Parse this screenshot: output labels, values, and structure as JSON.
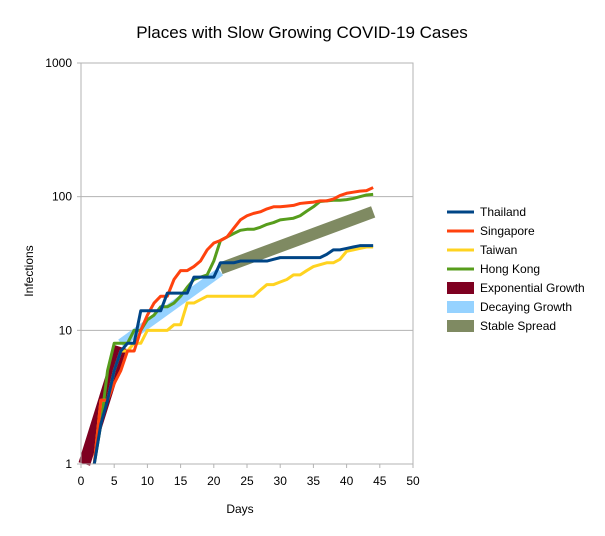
{
  "chart_data": {
    "type": "line",
    "title": "Places with Slow Growing COVID-19 Cases",
    "xlabel": "Days",
    "ylabel": "Infections",
    "xlim": [
      0,
      50
    ],
    "ylim": [
      1,
      1000
    ],
    "yscale": "log",
    "xticks": [
      0,
      5,
      10,
      15,
      20,
      25,
      30,
      35,
      40,
      45,
      50
    ],
    "yticks": [
      1,
      10,
      100,
      1000
    ],
    "ytick_labels": [
      "1",
      "10",
      "100",
      "1000"
    ],
    "grid": "y-major",
    "legend_position": "right",
    "series": [
      {
        "name": "Thailand",
        "kind": "line",
        "color": "#004586",
        "points": [
          [
            2,
            1
          ],
          [
            3,
            2
          ],
          [
            4,
            3
          ],
          [
            5,
            5
          ],
          [
            6,
            7
          ],
          [
            7,
            8
          ],
          [
            8,
            8
          ],
          [
            9,
            14
          ],
          [
            10,
            14
          ],
          [
            11,
            14
          ],
          [
            12,
            14
          ],
          [
            13,
            19
          ],
          [
            14,
            19
          ],
          [
            15,
            19
          ],
          [
            16,
            19
          ],
          [
            17,
            25
          ],
          [
            18,
            25
          ],
          [
            19,
            25
          ],
          [
            20,
            25
          ],
          [
            21,
            32
          ],
          [
            22,
            32
          ],
          [
            23,
            32
          ],
          [
            24,
            33
          ],
          [
            25,
            33
          ],
          [
            26,
            33
          ],
          [
            27,
            33
          ],
          [
            28,
            33
          ],
          [
            29,
            34
          ],
          [
            30,
            35
          ],
          [
            31,
            35
          ],
          [
            32,
            35
          ],
          [
            33,
            35
          ],
          [
            34,
            35
          ],
          [
            35,
            35
          ],
          [
            36,
            35
          ],
          [
            37,
            37
          ],
          [
            38,
            40
          ],
          [
            39,
            40
          ],
          [
            40,
            41
          ],
          [
            41,
            42
          ],
          [
            42,
            43
          ],
          [
            43,
            43
          ],
          [
            44,
            43
          ]
        ]
      },
      {
        "name": "Singapore",
        "kind": "line",
        "color": "#ff420e",
        "points": [
          [
            2,
            1
          ],
          [
            3,
            3
          ],
          [
            4,
            3
          ],
          [
            5,
            4
          ],
          [
            6,
            5
          ],
          [
            7,
            7
          ],
          [
            8,
            7
          ],
          [
            9,
            10
          ],
          [
            10,
            13
          ],
          [
            11,
            16
          ],
          [
            12,
            18
          ],
          [
            13,
            18
          ],
          [
            14,
            24
          ],
          [
            15,
            28
          ],
          [
            16,
            28
          ],
          [
            17,
            30
          ],
          [
            18,
            33
          ],
          [
            19,
            40
          ],
          [
            20,
            45
          ],
          [
            21,
            47
          ],
          [
            22,
            50
          ],
          [
            23,
            58
          ],
          [
            24,
            67
          ],
          [
            25,
            72
          ],
          [
            26,
            75
          ],
          [
            27,
            77
          ],
          [
            28,
            81
          ],
          [
            29,
            84
          ],
          [
            30,
            84
          ],
          [
            31,
            85
          ],
          [
            32,
            86
          ],
          [
            33,
            89
          ],
          [
            34,
            90
          ],
          [
            35,
            91
          ],
          [
            36,
            93
          ],
          [
            37,
            93
          ],
          [
            38,
            96
          ],
          [
            39,
            102
          ],
          [
            40,
            106
          ],
          [
            41,
            108
          ],
          [
            42,
            110
          ],
          [
            43,
            111
          ],
          [
            44,
            117
          ]
        ]
      },
      {
        "name": "Taiwan",
        "kind": "line",
        "color": "#ffd320",
        "points": [
          [
            2,
            1
          ],
          [
            3,
            3
          ],
          [
            4,
            3
          ],
          [
            5,
            5
          ],
          [
            6,
            7
          ],
          [
            7,
            7
          ],
          [
            8,
            8
          ],
          [
            9,
            8
          ],
          [
            10,
            10
          ],
          [
            11,
            10
          ],
          [
            12,
            10
          ],
          [
            13,
            10
          ],
          [
            14,
            11
          ],
          [
            15,
            11
          ],
          [
            16,
            16
          ],
          [
            17,
            16
          ],
          [
            18,
            17
          ],
          [
            19,
            18
          ],
          [
            20,
            18
          ],
          [
            21,
            18
          ],
          [
            22,
            18
          ],
          [
            23,
            18
          ],
          [
            24,
            18
          ],
          [
            25,
            18
          ],
          [
            26,
            18
          ],
          [
            27,
            20
          ],
          [
            28,
            22
          ],
          [
            29,
            22
          ],
          [
            30,
            23
          ],
          [
            31,
            24
          ],
          [
            32,
            26
          ],
          [
            33,
            26
          ],
          [
            34,
            28
          ],
          [
            35,
            30
          ],
          [
            36,
            31
          ],
          [
            37,
            32
          ],
          [
            38,
            32
          ],
          [
            39,
            34
          ],
          [
            40,
            39
          ],
          [
            41,
            40
          ],
          [
            42,
            41
          ],
          [
            43,
            42
          ],
          [
            44,
            42
          ]
        ]
      },
      {
        "name": "Hong Kong",
        "kind": "line",
        "color": "#579d1c",
        "points": [
          [
            2,
            1
          ],
          [
            3,
            2
          ],
          [
            4,
            5
          ],
          [
            5,
            8
          ],
          [
            6,
            8
          ],
          [
            7,
            8
          ],
          [
            8,
            10
          ],
          [
            9,
            10
          ],
          [
            10,
            12
          ],
          [
            11,
            13
          ],
          [
            12,
            15
          ],
          [
            13,
            15
          ],
          [
            14,
            16
          ],
          [
            15,
            18
          ],
          [
            16,
            21
          ],
          [
            17,
            24
          ],
          [
            18,
            25
          ],
          [
            19,
            26
          ],
          [
            20,
            33
          ],
          [
            21,
            47
          ],
          [
            22,
            50
          ],
          [
            23,
            53
          ],
          [
            24,
            56
          ],
          [
            25,
            57
          ],
          [
            26,
            57
          ],
          [
            27,
            59
          ],
          [
            28,
            62
          ],
          [
            29,
            64
          ],
          [
            30,
            67
          ],
          [
            31,
            68
          ],
          [
            32,
            69
          ],
          [
            33,
            72
          ],
          [
            34,
            78
          ],
          [
            35,
            84
          ],
          [
            36,
            92
          ],
          [
            37,
            93
          ],
          [
            38,
            94
          ],
          [
            39,
            94
          ],
          [
            40,
            95
          ],
          [
            41,
            97
          ],
          [
            42,
            100
          ],
          [
            43,
            103
          ],
          [
            44,
            104
          ]
        ]
      },
      {
        "name": "Exponential Growth",
        "kind": "band",
        "color": "#7e0021",
        "points": [
          [
            0.5,
            1
          ],
          [
            6,
            7.5
          ]
        ]
      },
      {
        "name": "Decaying Growth",
        "kind": "band",
        "color": "#83caff",
        "points": [
          [
            6,
            8
          ],
          [
            21,
            27.5
          ]
        ]
      },
      {
        "name": "Stable Spread",
        "kind": "band",
        "color": "#7f8a62",
        "points": [
          [
            21,
            29
          ],
          [
            44,
            77
          ]
        ]
      }
    ]
  }
}
